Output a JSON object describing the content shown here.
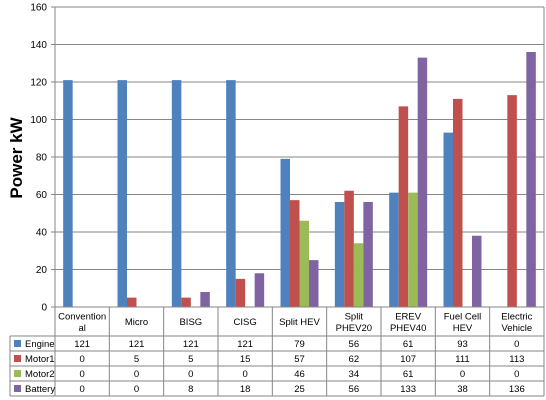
{
  "chart_data": {
    "type": "bar",
    "ylabel": "Power kW",
    "ylim": [
      0,
      160
    ],
    "yticks": [
      0,
      20,
      40,
      60,
      80,
      100,
      120,
      140,
      160
    ],
    "grid": true,
    "legend_placement": "data-table",
    "categories": [
      [
        "Convention",
        "al"
      ],
      [
        "Micro"
      ],
      [
        "BISG"
      ],
      [
        "CISG"
      ],
      [
        "Split HEV"
      ],
      [
        "Split",
        "PHEV20"
      ],
      [
        "EREV",
        "PHEV40"
      ],
      [
        "Fuel Cell",
        "HEV"
      ],
      [
        "Electric",
        "Vehicle"
      ]
    ],
    "series": [
      {
        "name": "Engine",
        "color": "#4F81BD",
        "values": [
          121,
          121,
          121,
          121,
          79,
          56,
          61,
          93,
          0
        ]
      },
      {
        "name": "Motor1",
        "color": "#C0504D",
        "values": [
          0,
          5,
          5,
          15,
          57,
          62,
          107,
          111,
          113
        ]
      },
      {
        "name": "Motor2",
        "color": "#9BBB59",
        "values": [
          0,
          0,
          0,
          0,
          46,
          34,
          61,
          0,
          0
        ]
      },
      {
        "name": "Battery",
        "color": "#8064A2",
        "values": [
          0,
          0,
          8,
          18,
          25,
          56,
          133,
          38,
          136
        ]
      }
    ]
  }
}
